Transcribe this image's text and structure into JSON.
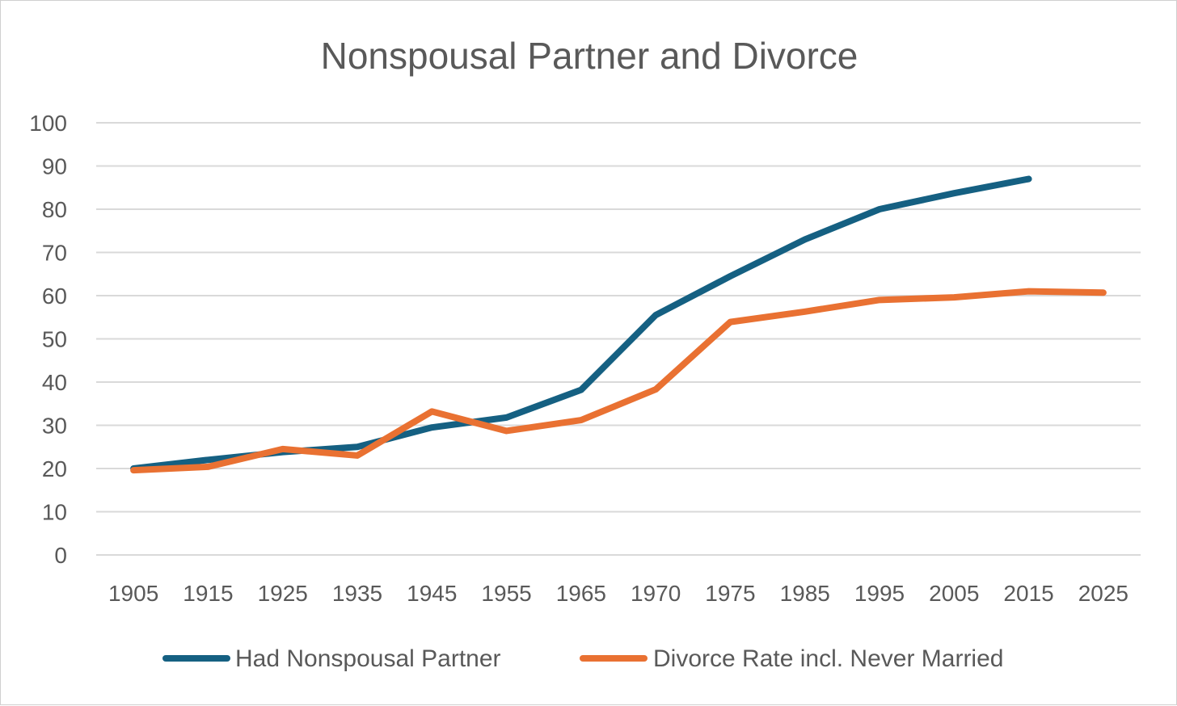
{
  "chart_data": {
    "type": "line",
    "title": "Nonspousal Partner and Divorce",
    "xlabel": "",
    "ylabel": "",
    "ylim": [
      0,
      100
    ],
    "yticks": [
      0,
      10,
      20,
      30,
      40,
      50,
      60,
      70,
      80,
      90,
      100
    ],
    "categories": [
      "1905",
      "1915",
      "1925",
      "1935",
      "1945",
      "1955",
      "1965",
      "1970",
      "1975",
      "1985",
      "1995",
      "2005",
      "2015",
      "2025"
    ],
    "grid": true,
    "legend_position": "bottom",
    "series": [
      {
        "name": "Had Nonspousal Partner",
        "color": "#156082",
        "values": [
          20,
          22,
          23.8,
          25,
          29.5,
          31.8,
          38.2,
          55.5,
          64.5,
          73,
          80,
          83.7,
          87,
          null
        ]
      },
      {
        "name": "Divorce Rate incl. Never Married",
        "color": "#E97132",
        "values": [
          19.6,
          20.4,
          24.5,
          23,
          33.2,
          28.7,
          31.2,
          38.3,
          53.9,
          56.3,
          59,
          59.6,
          61,
          60.7
        ]
      }
    ]
  }
}
